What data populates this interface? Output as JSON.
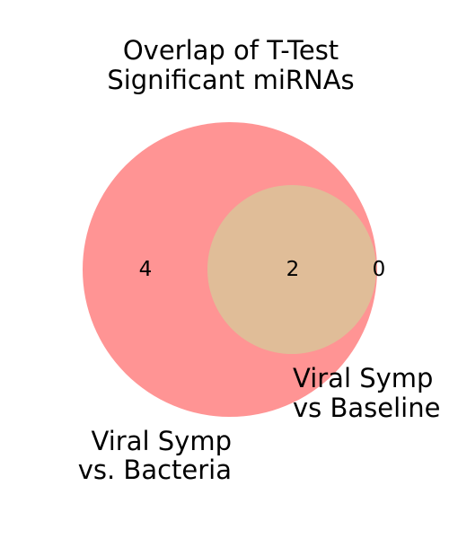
{
  "title": {
    "line1": "Overlap of T-Test",
    "line2": "Significant miRNAs"
  },
  "sets": [
    {
      "label_line1": "Viral Symp",
      "label_line2": "vs. Bacteria",
      "color": "#ff9494"
    },
    {
      "label_line1": "Viral Symp",
      "label_line2": "vs Baseline",
      "color": "#e0bd98"
    }
  ],
  "counts": {
    "only_first": "4",
    "both": "2",
    "only_second": "0"
  }
}
